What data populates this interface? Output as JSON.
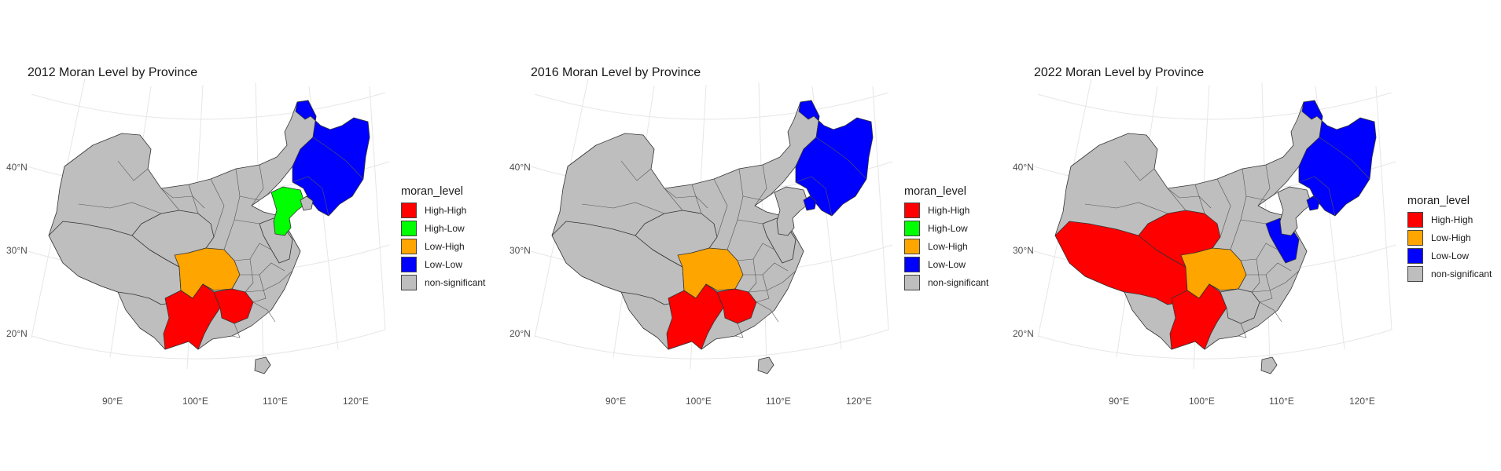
{
  "colors": {
    "High-High": "#ff0000",
    "High-Low": "#00ff00",
    "Low-High": "#ffa500",
    "Low-Low": "#0000ff",
    "non-significant": "#bebebe",
    "graticule": "#e6e6e6",
    "border": "#333333"
  },
  "axes": {
    "lat_ticks": [
      "40°N",
      "30°N",
      "20°N"
    ],
    "lon_ticks": [
      "90°E",
      "100°E",
      "110°E",
      "120°E"
    ]
  },
  "panels": [
    {
      "title": "2012 Moran Level by Province",
      "legend_title": "moran_level",
      "legend": [
        "High-High",
        "High-Low",
        "Low-High",
        "Low-Low",
        "non-significant"
      ],
      "regions": {
        "northeast": "Low-Low",
        "shanxi_hebei": "High-Low",
        "sichuan": "Low-High",
        "yunnan": "High-High",
        "guizhou": "High-High",
        "tibet": "non-significant",
        "qinghai": "non-significant",
        "beijing_tianjin": "non-significant",
        "shandong_jiangsu": "non-significant"
      }
    },
    {
      "title": "2016 Moran Level by Province",
      "legend_title": "moran_level",
      "legend": [
        "High-High",
        "High-Low",
        "Low-High",
        "Low-Low",
        "non-significant"
      ],
      "regions": {
        "northeast": "Low-Low",
        "shanxi_hebei": "non-significant",
        "sichuan": "Low-High",
        "yunnan": "High-High",
        "guizhou": "High-High",
        "tibet": "non-significant",
        "qinghai": "non-significant",
        "beijing_tianjin": "Low-Low",
        "shandong_jiangsu": "non-significant"
      }
    },
    {
      "title": "2022 Moran Level by Province",
      "legend_title": "moran_level",
      "legend": [
        "High-High",
        "Low-High",
        "Low-Low",
        "non-significant"
      ],
      "regions": {
        "northeast": "Low-Low",
        "shanxi_hebei": "non-significant",
        "sichuan": "Low-High",
        "yunnan": "High-High",
        "guizhou": "non-significant",
        "tibet": "High-High",
        "qinghai": "High-High",
        "beijing_tianjin": "Low-Low",
        "shandong_jiangsu": "Low-Low"
      }
    }
  ]
}
